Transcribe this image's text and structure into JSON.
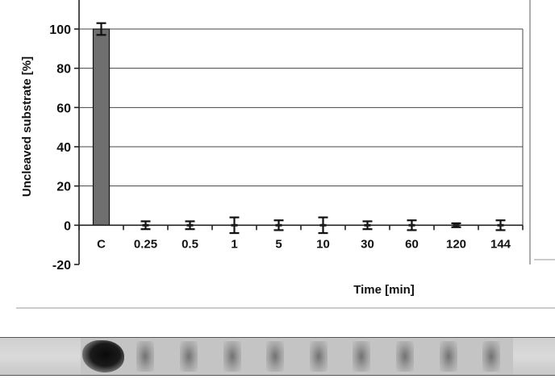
{
  "chart_data": {
    "type": "bar",
    "title": "",
    "xlabel": "Time [min]",
    "ylabel": "Uncleaved substrate [%]",
    "ylim": [
      -20,
      110
    ],
    "yticks": [
      100,
      80,
      60,
      40,
      20,
      0,
      -20
    ],
    "grid": true,
    "categories": [
      "C",
      "0.25",
      "0.5",
      "1",
      "5",
      "10",
      "30",
      "60",
      "120",
      "144"
    ],
    "values": [
      100,
      0,
      0,
      0,
      0,
      0,
      0,
      0,
      0,
      0
    ],
    "errors": [
      3,
      2,
      2,
      4,
      2.5,
      4,
      2,
      2.5,
      1,
      2.5
    ],
    "colors": {
      "bar": "#6f6f6f",
      "axis": "#222222"
    }
  },
  "gel": {
    "lanes": 10,
    "strong_lane": 0
  }
}
